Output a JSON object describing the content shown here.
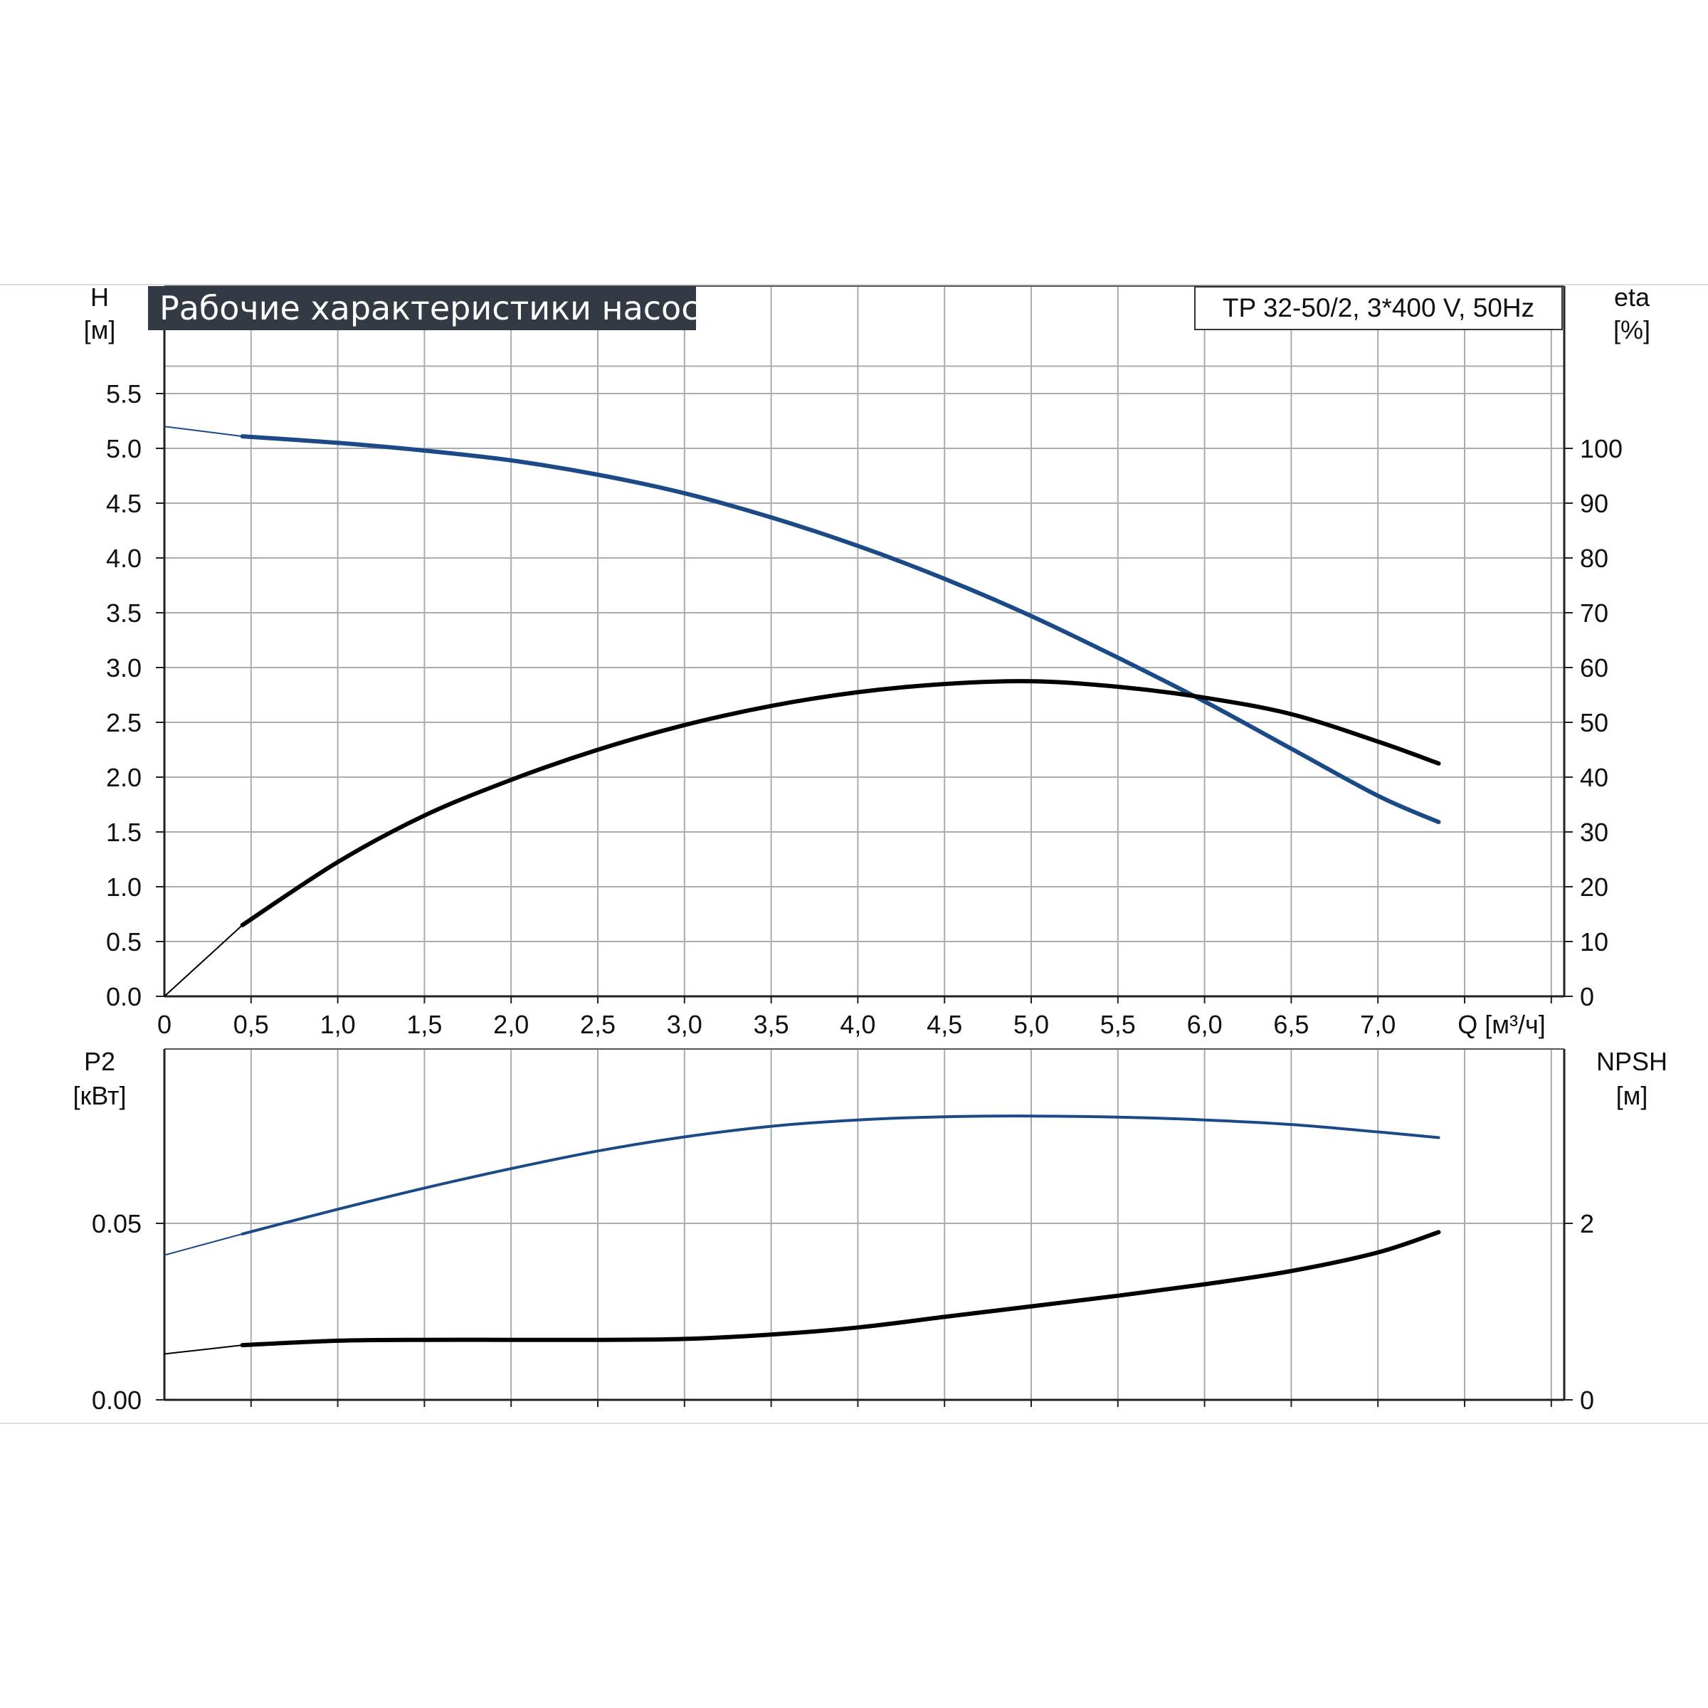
{
  "colors": {
    "blue": "#1b4a86",
    "black": "#000000",
    "grid": "#a9acb1",
    "axis": "#222222",
    "title_bg": "#333a44"
  },
  "title": "Рабочие характеристики насоса",
  "model": "TP 32-50/2, 3*400 V, 50Hz",
  "chart_data": [
    {
      "type": "line",
      "xlabel": "Q [м³/ч]",
      "xlim": [
        0,
        8.1
      ],
      "x_ticks": [
        "0",
        "0,5",
        "1,0",
        "1,5",
        "2,0",
        "2,5",
        "3,0",
        "3,5",
        "4,0",
        "4,5",
        "5,0",
        "5,5",
        "6,0",
        "6,5",
        "7,0"
      ],
      "left_axis": {
        "label": "H",
        "unit": "[м]",
        "lim": [
          0,
          6.0
        ],
        "ticks": [
          "0.0",
          "0.5",
          "1.0",
          "1.5",
          "2.0",
          "2.5",
          "3.0",
          "3.5",
          "4.0",
          "4.5",
          "5.0",
          "5.5"
        ]
      },
      "right_axis": {
        "label": "eta",
        "unit": "[%]",
        "lim": [
          0,
          120
        ],
        "ticks": [
          "0",
          "10",
          "20",
          "30",
          "40",
          "50",
          "60",
          "70",
          "80",
          "90",
          "100"
        ]
      },
      "series": [
        {
          "axis": "left",
          "color": "blue",
          "thin_until": 0.45,
          "x": [
            0,
            0.45,
            1.0,
            1.5,
            2.0,
            2.5,
            3.0,
            3.5,
            4.0,
            4.5,
            5.0,
            5.5,
            6.0,
            6.5,
            7.0,
            7.35
          ],
          "y": [
            5.2,
            5.11,
            5.05,
            4.98,
            4.89,
            4.76,
            4.59,
            4.37,
            4.11,
            3.81,
            3.47,
            3.09,
            2.69,
            2.26,
            1.83,
            1.59
          ]
        },
        {
          "axis": "right",
          "color": "black",
          "thin_until": 0.45,
          "x": [
            0,
            0.45,
            1.0,
            1.5,
            2.0,
            2.5,
            3.0,
            3.5,
            4.0,
            4.5,
            5.0,
            5.5,
            6.0,
            6.5,
            7.0,
            7.35
          ],
          "y": [
            0,
            13,
            24.5,
            33,
            39.5,
            45,
            49.5,
            53,
            55.5,
            57,
            57.5,
            56.5,
            54.5,
            51.5,
            46.5,
            42.5
          ]
        }
      ]
    },
    {
      "type": "line",
      "xlim": [
        0,
        8.1
      ],
      "left_axis": {
        "label": "P2",
        "unit": "[кВт]",
        "lim": [
          0,
          0.1
        ],
        "ticks": [
          "0.00",
          "0.05"
        ]
      },
      "right_axis": {
        "label": "NPSH",
        "unit": "[м]",
        "lim": [
          0,
          4
        ],
        "ticks": [
          "0",
          "2"
        ]
      },
      "series": [
        {
          "axis": "left",
          "color": "blue",
          "thin_until": 0.45,
          "x": [
            0,
            0.45,
            1.0,
            1.5,
            2.0,
            2.5,
            3.0,
            3.5,
            4.0,
            4.5,
            5.0,
            5.5,
            6.0,
            6.5,
            7.0,
            7.35
          ],
          "y": [
            0.041,
            0.047,
            0.054,
            0.06,
            0.0655,
            0.0705,
            0.0745,
            0.0775,
            0.0793,
            0.0802,
            0.0804,
            0.0801,
            0.0793,
            0.078,
            0.0759,
            0.0743
          ]
        },
        {
          "axis": "right",
          "color": "black",
          "thin_until": 0.45,
          "x": [
            0,
            0.45,
            1.0,
            1.5,
            2.0,
            2.5,
            3.0,
            3.5,
            4.0,
            4.5,
            5.0,
            5.5,
            6.0,
            6.5,
            7.0,
            7.35
          ],
          "y": [
            0.52,
            0.62,
            0.67,
            0.68,
            0.68,
            0.68,
            0.69,
            0.74,
            0.82,
            0.94,
            1.06,
            1.18,
            1.31,
            1.46,
            1.67,
            1.9
          ]
        }
      ]
    }
  ]
}
